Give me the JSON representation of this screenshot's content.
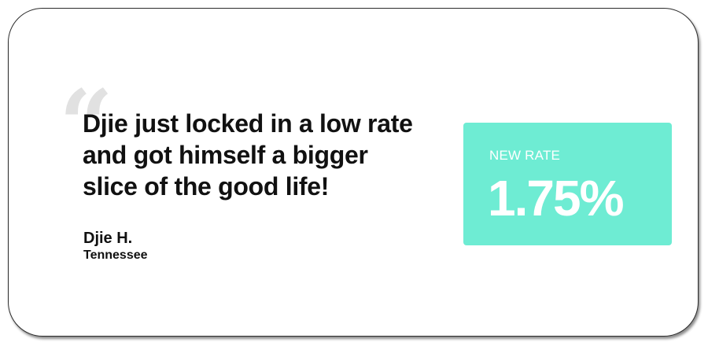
{
  "testimonial": {
    "quote_mark": "“",
    "quote_lines": [
      "Djie just locked in a low rate",
      "and got himself a bigger",
      "slice of the good life!"
    ],
    "author_name": "Djie H.",
    "author_location": "Tennessee"
  },
  "rate_card": {
    "label": "NEW RATE",
    "value": "1.75%"
  },
  "colors": {
    "accent": "#6eecd3",
    "text": "#111111",
    "quote_mark": "#e1e1e1"
  }
}
